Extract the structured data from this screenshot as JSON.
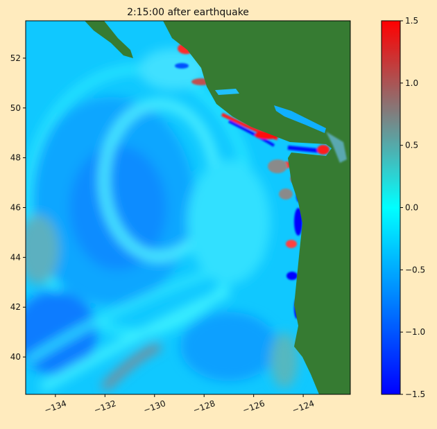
{
  "chart_data": {
    "type": "heatmap",
    "title": "2:15:00 after earthquake",
    "xlabel": "",
    "ylabel": "",
    "xlim": [
      -135.2,
      -122.1
    ],
    "ylim": [
      38.5,
      53.5
    ],
    "x_ticks": [
      -134,
      -132,
      -130,
      -128,
      -126,
      -124
    ],
    "x_tick_labels": [
      "−134",
      "−132",
      "−130",
      "−128",
      "−126",
      "−124"
    ],
    "y_ticks": [
      40,
      42,
      44,
      46,
      48,
      50,
      52
    ],
    "y_tick_labels": [
      "40",
      "42",
      "44",
      "46",
      "48",
      "50",
      "52"
    ],
    "grid": false,
    "colorbar": {
      "range": [
        -1.5,
        1.5
      ],
      "ticks": [
        -1.5,
        -1.0,
        -0.5,
        0.0,
        0.5,
        1.0,
        1.5
      ],
      "tick_labels": [
        "−1.5",
        "−1.0",
        "−0.5",
        "0.0",
        "0.5",
        "1.0",
        "1.5"
      ],
      "colors": [
        "#0000ff",
        "#0080ff",
        "#00ffff",
        "#7f7f7f",
        "#ff0000"
      ]
    },
    "colors": {
      "land": "#367b32",
      "background": "#ffebbe"
    }
  }
}
